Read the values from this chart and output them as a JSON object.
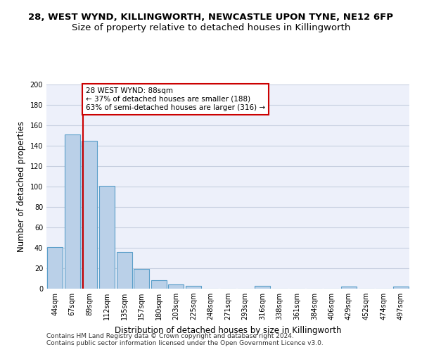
{
  "title_line1": "28, WEST WYND, KILLINGWORTH, NEWCASTLE UPON TYNE, NE12 6FP",
  "title_line2": "Size of property relative to detached houses in Killingworth",
  "xlabel": "Distribution of detached houses by size in Killingworth",
  "ylabel": "Number of detached properties",
  "bar_labels": [
    "44sqm",
    "67sqm",
    "89sqm",
    "112sqm",
    "135sqm",
    "157sqm",
    "180sqm",
    "203sqm",
    "225sqm",
    "248sqm",
    "271sqm",
    "293sqm",
    "316sqm",
    "338sqm",
    "361sqm",
    "384sqm",
    "406sqm",
    "429sqm",
    "452sqm",
    "474sqm",
    "497sqm"
  ],
  "bar_values": [
    41,
    151,
    145,
    101,
    36,
    19,
    8,
    4,
    3,
    0,
    0,
    0,
    3,
    0,
    0,
    0,
    0,
    2,
    0,
    0,
    2
  ],
  "bar_color": "#bad0e8",
  "bar_edge_color": "#5a9ec9",
  "annotation_text": "28 WEST WYND: 88sqm\n← 37% of detached houses are smaller (188)\n63% of semi-detached houses are larger (316) →",
  "vline_x": 1.62,
  "vline_color": "#cc0000",
  "annotation_box_color": "#ffffff",
  "annotation_box_edge": "#cc0000",
  "ylim": [
    0,
    200
  ],
  "yticks": [
    0,
    20,
    40,
    60,
    80,
    100,
    120,
    140,
    160,
    180,
    200
  ],
  "footer_line1": "Contains HM Land Registry data © Crown copyright and database right 2024.",
  "footer_line2": "Contains public sector information licensed under the Open Government Licence v3.0.",
  "bg_color": "#edf0fa",
  "grid_color": "#c8d0e0",
  "title_fontsize": 9.5,
  "subtitle_fontsize": 9.5,
  "tick_fontsize": 7,
  "ylabel_fontsize": 8.5,
  "xlabel_fontsize": 8.5,
  "annotation_fontsize": 7.5,
  "footer_fontsize": 6.5
}
